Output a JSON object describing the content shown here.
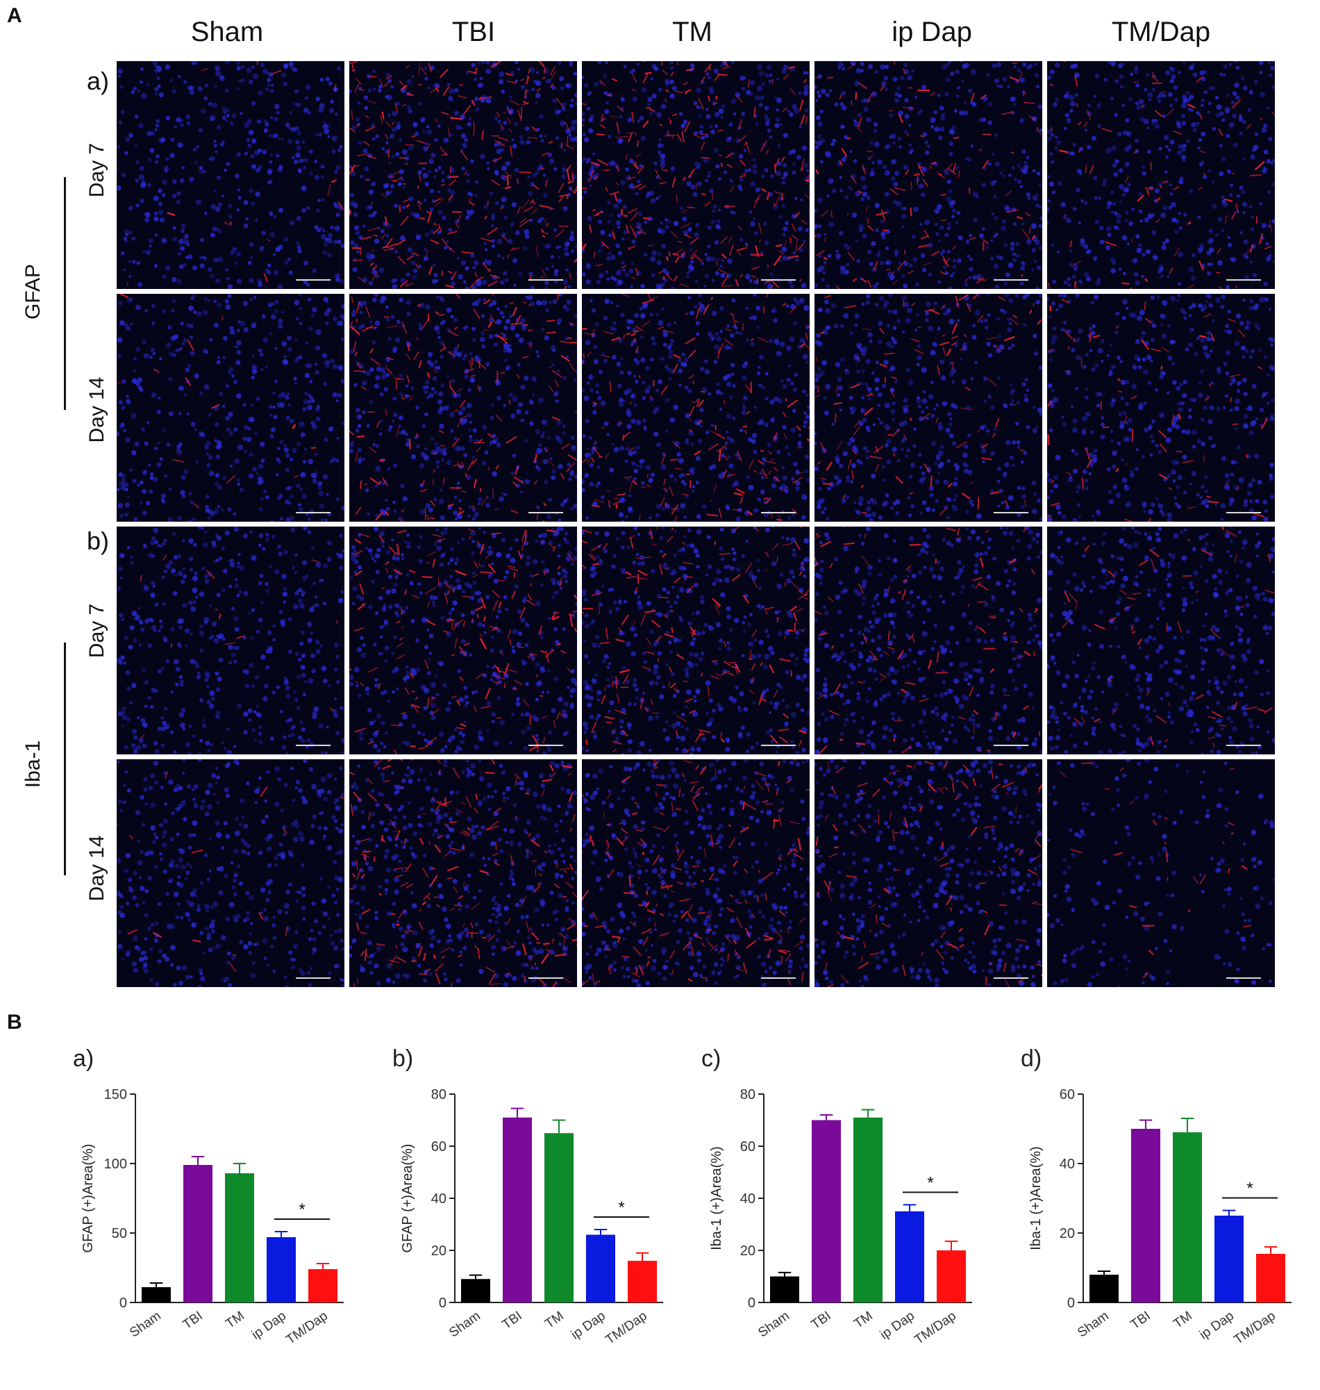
{
  "figure": {
    "panel_A_letter": "A",
    "panel_B_letter": "B",
    "columns": [
      "Sham",
      "TBI",
      "TM",
      "ip Dap",
      "TM/Dap"
    ],
    "sections": [
      {
        "letter": "a)",
        "stain": "GFAP",
        "rows": [
          "Day 7",
          "Day 14"
        ]
      },
      {
        "letter": "b)",
        "stain": "Iba-1",
        "rows": [
          "Day 7",
          "Day 14"
        ]
      }
    ],
    "colors": {
      "nuclei": "#2a2ad8",
      "marker": "#e02030",
      "background": "#05051a"
    }
  },
  "chart_data": [
    {
      "panel": "a)",
      "type": "bar",
      "categories": [
        "Sham",
        "TBI",
        "TM",
        "ip Dap",
        "TM/Dap"
      ],
      "values": [
        11,
        99,
        93,
        47,
        24
      ],
      "errors": [
        3,
        6,
        7,
        4,
        4
      ],
      "colors": [
        "#000000",
        "#7a0a9a",
        "#0e8a2a",
        "#0a1adf",
        "#ff1010"
      ],
      "ylabel": "GFAP (+)Area(%)",
      "ylim": [
        0,
        150
      ],
      "yticks": [
        0,
        50,
        100,
        150
      ],
      "significance": {
        "label": "*",
        "between": [
          "ip Dap",
          "TM/Dap"
        ]
      }
    },
    {
      "panel": "b)",
      "type": "bar",
      "categories": [
        "Sham",
        "TBI",
        "TM",
        "ip Dap",
        "TM/Dap"
      ],
      "values": [
        9,
        71,
        65,
        26,
        16
      ],
      "errors": [
        1.5,
        3.5,
        5,
        2,
        3
      ],
      "colors": [
        "#000000",
        "#7a0a9a",
        "#0e8a2a",
        "#0a1adf",
        "#ff1010"
      ],
      "ylabel": "GFAP (+)Area(%)",
      "ylim": [
        0,
        80
      ],
      "yticks": [
        0,
        20,
        40,
        60,
        80
      ],
      "significance": {
        "label": "*",
        "between": [
          "ip Dap",
          "TM/Dap"
        ]
      }
    },
    {
      "panel": "c)",
      "type": "bar",
      "categories": [
        "Sham",
        "TBI",
        "TM",
        "ip Dap",
        "TM/Dap"
      ],
      "values": [
        10,
        70,
        71,
        35,
        20
      ],
      "errors": [
        1.5,
        2,
        3,
        2.5,
        3.5
      ],
      "colors": [
        "#000000",
        "#7a0a9a",
        "#0e8a2a",
        "#0a1adf",
        "#ff1010"
      ],
      "ylabel": "Iba-1 (+)Area(%)",
      "ylim": [
        0,
        80
      ],
      "yticks": [
        0,
        20,
        40,
        60,
        80
      ],
      "significance": {
        "label": "*",
        "between": [
          "ip Dap",
          "TM/Dap"
        ]
      }
    },
    {
      "panel": "d)",
      "type": "bar",
      "categories": [
        "Sham",
        "TBI",
        "TM",
        "ip Dap",
        "TM/Dap"
      ],
      "values": [
        8,
        50,
        49,
        25,
        14
      ],
      "errors": [
        1,
        2.5,
        4,
        1.5,
        2
      ],
      "colors": [
        "#000000",
        "#7a0a9a",
        "#0e8a2a",
        "#0a1adf",
        "#ff1010"
      ],
      "ylabel": "Iba-1 (+)Area(%)",
      "ylim": [
        0,
        60
      ],
      "yticks": [
        0,
        20,
        40,
        60
      ],
      "significance": {
        "label": "*",
        "between": [
          "ip Dap",
          "TM/Dap"
        ]
      }
    }
  ]
}
